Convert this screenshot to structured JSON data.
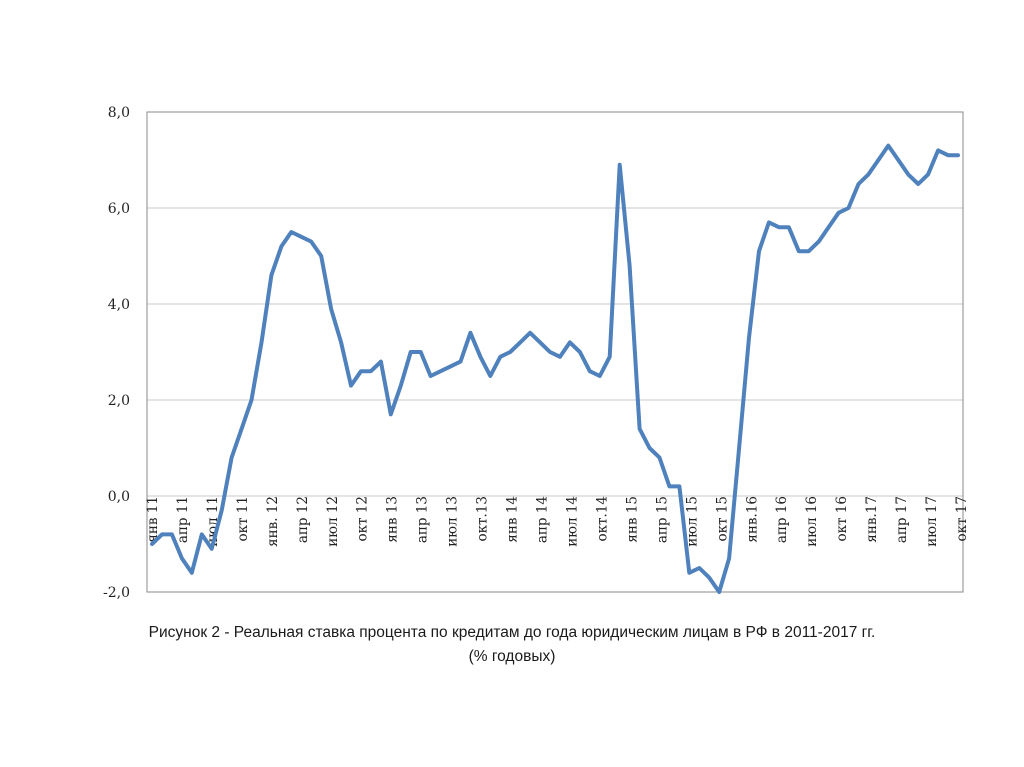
{
  "chart_data": {
    "type": "line",
    "title": "",
    "xlabel": "",
    "ylabel": "",
    "ylim": [
      -2.0,
      8.0
    ],
    "yticks": [
      8.0,
      6.0,
      4.0,
      2.0,
      0.0,
      -2.0
    ],
    "ytick_labels": [
      "8,0",
      "6,0",
      "4,0",
      "2,0",
      "0,0",
      "-2,0"
    ],
    "grid": true,
    "line_color": "#4F81BD",
    "xtick_labels": [
      "янв 11",
      "апр 11",
      "июл 11",
      "окт 11",
      "янв. 12",
      "апр 12",
      "июл 12",
      "окт 12",
      "янв 13",
      "апр 13",
      "июл 13",
      "окт.13",
      "янв 14",
      "апр 14",
      "июл 14",
      "окт.14",
      "янв 15",
      "апр 15",
      "июл 15",
      "окт 15",
      "янв.16",
      "апр 16",
      "июл 16",
      "окт 16",
      "янв.17",
      "апр 17",
      "июл 17",
      "окт 17"
    ],
    "series": [
      {
        "name": "Реальная ставка",
        "values": [
          -1.0,
          -0.8,
          -0.8,
          -1.3,
          -1.6,
          -0.8,
          -1.1,
          -0.3,
          0.8,
          1.4,
          2.0,
          3.2,
          4.6,
          5.2,
          5.5,
          5.4,
          5.3,
          5.0,
          3.9,
          3.2,
          2.3,
          2.6,
          2.6,
          2.8,
          1.7,
          2.3,
          3.0,
          3.0,
          2.5,
          2.6,
          2.7,
          2.8,
          3.4,
          2.9,
          2.5,
          2.9,
          3.0,
          3.2,
          3.4,
          3.2,
          3.0,
          2.9,
          3.2,
          3.0,
          2.6,
          2.5,
          2.9,
          6.9,
          4.8,
          1.4,
          1.0,
          0.8,
          0.2,
          0.2,
          -1.6,
          -1.5,
          -1.7,
          -2.0,
          -1.3,
          1.0,
          3.3,
          5.1,
          5.7,
          5.6,
          5.6,
          5.1,
          5.1,
          5.3,
          5.6,
          5.9,
          6.0,
          6.5,
          6.7,
          7.0,
          7.3,
          7.0,
          6.7,
          6.5,
          6.7,
          7.2,
          7.1,
          7.1
        ]
      }
    ]
  },
  "caption": {
    "line1": "Рисунок 2 - Реальная ставка процента по кредитам до года юридическим лицам в РФ в 2011-2017 гг.",
    "line2": "(% годовых)"
  }
}
